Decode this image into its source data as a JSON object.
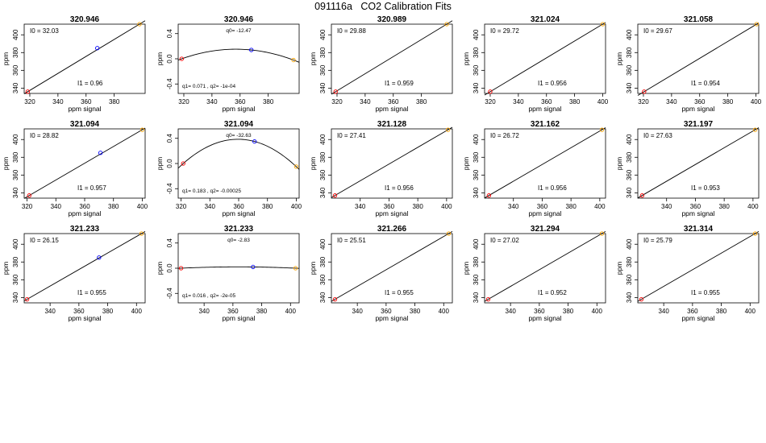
{
  "page_title": "091116a   CO2 Calibration Fits",
  "colors": {
    "axis": "#000000",
    "fit_line": "#000000",
    "point_low": "#ff0000",
    "point_mid": "#0000ff",
    "point_high": "#ffa500"
  },
  "chart_data": [
    {
      "type": "scatter",
      "title": "320.946",
      "fit": "linear",
      "xlabel": "ppm signal",
      "ylabel": "ppm",
      "xlim": [
        316,
        402
      ],
      "ylim": [
        334,
        412
      ],
      "xticks": [
        320,
        340,
        360,
        380
      ],
      "yticks": [
        340,
        360,
        380,
        400
      ],
      "points": [
        {
          "x": 318.5,
          "y": 336,
          "color": "red"
        },
        {
          "x": 368,
          "y": 385,
          "color": "blue"
        },
        {
          "x": 398,
          "y": 412,
          "color": "orange"
        }
      ],
      "annotations": [
        "I0 =  32.03",
        "I1 =  0.96"
      ]
    },
    {
      "type": "scatter",
      "title": "320.946",
      "fit": "quadratic",
      "xlabel": "ppm signal",
      "ylabel": "ppm",
      "xlim": [
        316,
        402
      ],
      "ylim": [
        -0.55,
        0.55
      ],
      "xticks": [
        320,
        340,
        360,
        380
      ],
      "yticks": [
        -0.4,
        0.0,
        0.4
      ],
      "points": [
        {
          "x": 318.5,
          "y": 0.0,
          "color": "red"
        },
        {
          "x": 368,
          "y": 0.14,
          "color": "blue"
        },
        {
          "x": 398,
          "y": -0.02,
          "color": "orange"
        }
      ],
      "annotations": [
        "q0= -12.47",
        "q1= 0.071  , q2= -1e-04"
      ]
    },
    {
      "type": "scatter",
      "title": "320.989",
      "fit": "linear",
      "xlabel": "ppm signal",
      "ylabel": "ppm",
      "xlim": [
        316,
        402
      ],
      "ylim": [
        334,
        412
      ],
      "xticks": [
        320,
        340,
        360,
        380
      ],
      "yticks": [
        340,
        360,
        380,
        400
      ],
      "points": [
        {
          "x": 319,
          "y": 336,
          "color": "red"
        },
        {
          "x": 398,
          "y": 412,
          "color": "orange"
        }
      ],
      "annotations": [
        "I0 =  29.88",
        "I1 =  0.959"
      ]
    },
    {
      "type": "scatter",
      "title": "321.024",
      "fit": "linear",
      "xlabel": "ppm signal",
      "ylabel": "ppm",
      "xlim": [
        316,
        402
      ],
      "ylim": [
        334,
        412
      ],
      "xticks": [
        320,
        340,
        360,
        380,
        400
      ],
      "yticks": [
        340,
        360,
        380,
        400
      ],
      "points": [
        {
          "x": 320,
          "y": 336,
          "color": "red"
        },
        {
          "x": 400,
          "y": 412,
          "color": "orange"
        }
      ],
      "annotations": [
        "I0 =  29.72",
        "I1 =  0.956"
      ]
    },
    {
      "type": "scatter",
      "title": "321.058",
      "fit": "linear",
      "xlabel": "ppm signal",
      "ylabel": "ppm",
      "xlim": [
        316,
        402
      ],
      "ylim": [
        334,
        412
      ],
      "xticks": [
        320,
        340,
        360,
        380,
        400
      ],
      "yticks": [
        340,
        360,
        380,
        400
      ],
      "points": [
        {
          "x": 320.5,
          "y": 336,
          "color": "red"
        },
        {
          "x": 400.5,
          "y": 412,
          "color": "orange"
        }
      ],
      "annotations": [
        "I0 =  29.67",
        "I1 =  0.954"
      ]
    },
    {
      "type": "scatter",
      "title": "321.094",
      "fit": "linear",
      "xlabel": "ppm signal",
      "ylabel": "ppm",
      "xlim": [
        318,
        402
      ],
      "ylim": [
        334,
        412
      ],
      "xticks": [
        320,
        340,
        360,
        380,
        400
      ],
      "yticks": [
        340,
        360,
        380,
        400
      ],
      "points": [
        {
          "x": 321.5,
          "y": 337,
          "color": "red"
        },
        {
          "x": 371,
          "y": 385,
          "color": "blue"
        },
        {
          "x": 400,
          "y": 411,
          "color": "orange"
        }
      ],
      "annotations": [
        "I0 =  28.82",
        "I1 =  0.957"
      ]
    },
    {
      "type": "scatter",
      "title": "321.094",
      "fit": "quadratic",
      "xlabel": "ppm signal",
      "ylabel": "ppm",
      "xlim": [
        318,
        402
      ],
      "ylim": [
        -0.55,
        0.55
      ],
      "xticks": [
        320,
        340,
        360,
        380,
        400
      ],
      "yticks": [
        -0.4,
        0.0,
        0.4
      ],
      "points": [
        {
          "x": 321.5,
          "y": 0.0,
          "color": "red"
        },
        {
          "x": 371,
          "y": 0.35,
          "color": "blue"
        },
        {
          "x": 400,
          "y": -0.05,
          "color": "orange"
        }
      ],
      "annotations": [
        "q0= -32.63",
        "q1= 0.183  , q2= -0.00025"
      ]
    },
    {
      "type": "scatter",
      "title": "321.128",
      "fit": "linear",
      "xlabel": "ppm signal",
      "ylabel": "ppm",
      "xlim": [
        320,
        404
      ],
      "ylim": [
        334,
        412
      ],
      "xticks": [
        340,
        360,
        380,
        400
      ],
      "yticks": [
        340,
        360,
        380,
        400
      ],
      "points": [
        {
          "x": 322.5,
          "y": 337,
          "color": "red"
        },
        {
          "x": 401,
          "y": 411,
          "color": "orange"
        }
      ],
      "annotations": [
        "I0 =  27.41",
        "I1 =  0.956"
      ]
    },
    {
      "type": "scatter",
      "title": "321.162",
      "fit": "linear",
      "xlabel": "ppm signal",
      "ylabel": "ppm",
      "xlim": [
        320,
        404
      ],
      "ylim": [
        334,
        412
      ],
      "xticks": [
        340,
        360,
        380,
        400
      ],
      "yticks": [
        340,
        360,
        380,
        400
      ],
      "points": [
        {
          "x": 323,
          "y": 337,
          "color": "red"
        },
        {
          "x": 401.5,
          "y": 411,
          "color": "orange"
        }
      ],
      "annotations": [
        "I0 =  26.72",
        "I1 =  0.956"
      ]
    },
    {
      "type": "scatter",
      "title": "321.197",
      "fit": "linear",
      "xlabel": "ppm signal",
      "ylabel": "ppm",
      "xlim": [
        320,
        404
      ],
      "ylim": [
        334,
        412
      ],
      "xticks": [
        340,
        360,
        380,
        400
      ],
      "yticks": [
        340,
        360,
        380,
        400
      ],
      "points": [
        {
          "x": 323,
          "y": 337,
          "color": "red"
        },
        {
          "x": 401.5,
          "y": 411,
          "color": "orange"
        }
      ],
      "annotations": [
        "I0 =  27.63",
        "I1 =  0.953"
      ]
    },
    {
      "type": "scatter",
      "title": "321.233",
      "fit": "linear",
      "xlabel": "ppm signal",
      "ylabel": "ppm",
      "xlim": [
        322,
        406
      ],
      "ylim": [
        334,
        412
      ],
      "xticks": [
        340,
        360,
        380,
        400
      ],
      "yticks": [
        340,
        360,
        380,
        400
      ],
      "points": [
        {
          "x": 324,
          "y": 338,
          "color": "red"
        },
        {
          "x": 374,
          "y": 385,
          "color": "blue"
        },
        {
          "x": 403.5,
          "y": 412,
          "color": "orange"
        }
      ],
      "annotations": [
        "I0 =  26.15",
        "I1 =  0.955"
      ]
    },
    {
      "type": "scatter",
      "title": "321.233",
      "fit": "quadratic",
      "xlabel": "ppm signal",
      "ylabel": "ppm",
      "xlim": [
        322,
        406
      ],
      "ylim": [
        -0.55,
        0.55
      ],
      "xticks": [
        340,
        360,
        380,
        400
      ],
      "yticks": [
        -0.4,
        0.0,
        0.4
      ],
      "points": [
        {
          "x": 324,
          "y": 0.0,
          "color": "red"
        },
        {
          "x": 374,
          "y": 0.02,
          "color": "blue"
        },
        {
          "x": 403.5,
          "y": 0.0,
          "color": "orange"
        }
      ],
      "annotations": [
        "q0= -2.83",
        "q1= 0.016  , q2= -2e-05"
      ]
    },
    {
      "type": "scatter",
      "title": "321.266",
      "fit": "linear",
      "xlabel": "ppm signal",
      "ylabel": "ppm",
      "xlim": [
        322,
        406
      ],
      "ylim": [
        334,
        412
      ],
      "xticks": [
        340,
        360,
        380,
        400
      ],
      "yticks": [
        340,
        360,
        380,
        400
      ],
      "points": [
        {
          "x": 324.5,
          "y": 338,
          "color": "red"
        },
        {
          "x": 403.5,
          "y": 412,
          "color": "orange"
        }
      ],
      "annotations": [
        "I0 =  25.51",
        "I1 =  0.955"
      ]
    },
    {
      "type": "scatter",
      "title": "321.294",
      "fit": "linear",
      "xlabel": "ppm signal",
      "ylabel": "ppm",
      "xlim": [
        322,
        406
      ],
      "ylim": [
        334,
        412
      ],
      "xticks": [
        340,
        360,
        380,
        400
      ],
      "yticks": [
        340,
        360,
        380,
        400
      ],
      "points": [
        {
          "x": 324.5,
          "y": 338,
          "color": "red"
        },
        {
          "x": 403.5,
          "y": 412,
          "color": "orange"
        }
      ],
      "annotations": [
        "I0 =  27.02",
        "I1 =  0.952"
      ]
    },
    {
      "type": "scatter",
      "title": "321.314",
      "fit": "linear",
      "xlabel": "ppm signal",
      "ylabel": "ppm",
      "xlim": [
        322,
        406
      ],
      "ylim": [
        334,
        412
      ],
      "xticks": [
        340,
        360,
        380,
        400
      ],
      "yticks": [
        340,
        360,
        380,
        400
      ],
      "points": [
        {
          "x": 324.5,
          "y": 338,
          "color": "red"
        },
        {
          "x": 403.5,
          "y": 412,
          "color": "orange"
        }
      ],
      "annotations": [
        "I0 =  25.79",
        "I1 =  0.955"
      ]
    }
  ]
}
